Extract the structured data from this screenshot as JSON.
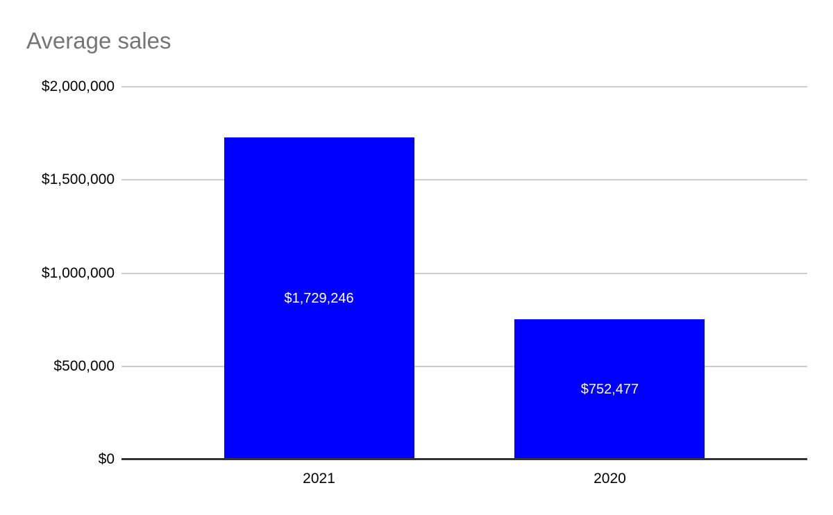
{
  "chart_data": {
    "type": "bar",
    "title": "Average sales",
    "categories": [
      "2021",
      "2020"
    ],
    "values": [
      1729246,
      752477
    ],
    "bar_labels": [
      "$1,729,246",
      "$752,477"
    ],
    "xlabel": "",
    "ylabel": "",
    "ylim": [
      0,
      2000000
    ],
    "yticks": [
      {
        "value": 0,
        "label": "$0"
      },
      {
        "value": 500000,
        "label": "$500,000"
      },
      {
        "value": 1000000,
        "label": "$1,000,000"
      },
      {
        "value": 1500000,
        "label": "$1,500,000"
      },
      {
        "value": 2000000,
        "label": "$2,000,000"
      }
    ],
    "grid": true,
    "legend": "none",
    "colors": {
      "bar": "#0000ff",
      "bar_label": "#ffffff",
      "title": "#757575",
      "axis_text": "#000000",
      "gridline": "#cccccc",
      "baseline": "#333333"
    }
  }
}
